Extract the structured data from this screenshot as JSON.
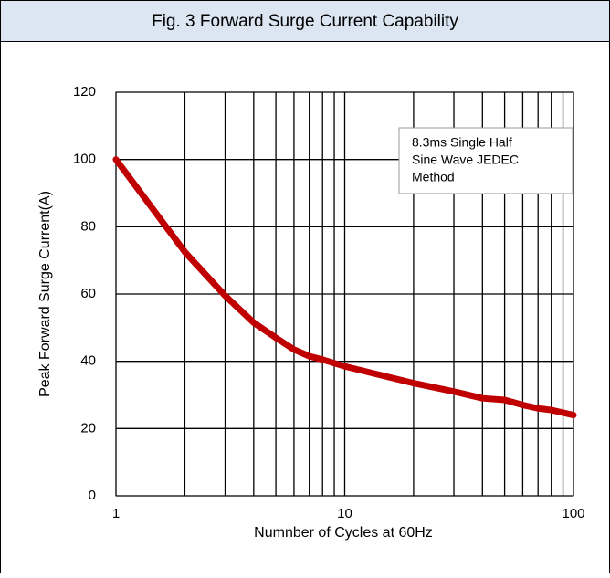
{
  "chart_data": {
    "type": "line",
    "title": "Fig. 3 Forward Surge Current Capability",
    "xlabel": "Numnber of Cycles at 60Hz",
    "ylabel": "Peak Forward Surge Current(A)",
    "annotation": [
      "8.3ms Single Half",
      "Sine Wave JEDEC",
      "Method"
    ],
    "x": [
      1,
      2,
      3,
      4,
      5,
      6,
      7,
      8,
      10,
      20,
      30,
      40,
      50,
      60,
      70,
      80,
      100
    ],
    "series": [
      {
        "name": "8.3ms Single Half Sine Wave JEDEC Method",
        "color": "#c00000",
        "values": [
          100,
          72.5,
          59.5,
          51.5,
          47,
          43.5,
          41.5,
          40.5,
          38.5,
          33.5,
          31,
          29,
          28.5,
          27,
          26,
          25.5,
          24
        ]
      }
    ],
    "xscale": "log",
    "xlim": [
      1,
      100
    ],
    "xticks": [
      1,
      10,
      100
    ],
    "xminor_grid": [
      2,
      3,
      4,
      5,
      6,
      7,
      8,
      9,
      20,
      30,
      40,
      50,
      60,
      70,
      80,
      90
    ],
    "ylim": [
      0,
      120
    ],
    "yticks": [
      0,
      20,
      40,
      60,
      80,
      100,
      120
    ],
    "grid": true
  }
}
